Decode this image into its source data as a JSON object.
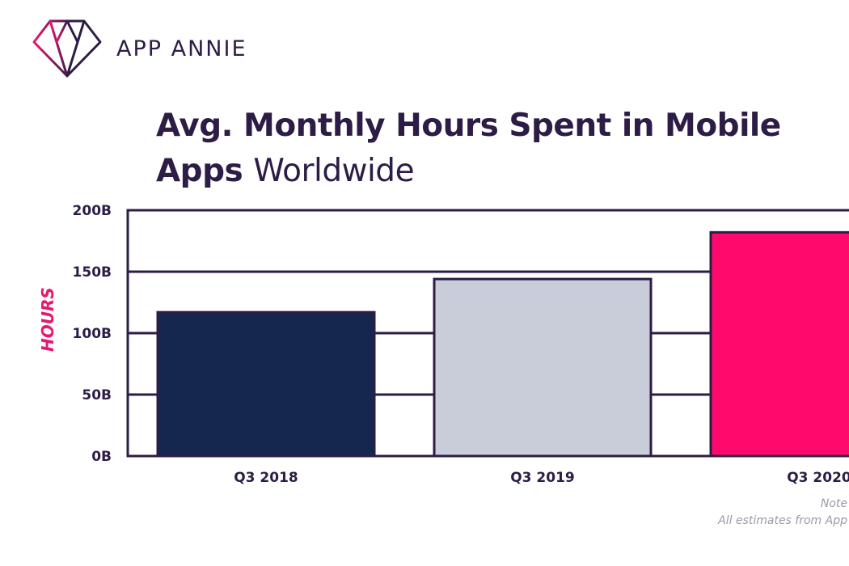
{
  "brand": {
    "name": "APP ANNIE",
    "logo_icon": "diamond-icon",
    "colors": {
      "dark": "#2d1d46",
      "pink": "#e8176f"
    }
  },
  "title": {
    "bold_part": "Avg. Monthly Hours Spent in Mobile Apps",
    "light_part": "Worldwide"
  },
  "footnotes": [
    "Note",
    "All estimates from App"
  ],
  "chart_data": {
    "type": "bar",
    "title": "Avg. Monthly Hours Spent in Mobile Apps Worldwide",
    "xlabel": "",
    "ylabel": "HOURS",
    "categories": [
      "Q3 2018",
      "Q3 2019",
      "Q3 2020"
    ],
    "values": [
      117,
      144,
      182
    ],
    "value_unit": "B",
    "ylim": [
      0,
      200
    ],
    "yticks": [
      0,
      50,
      100,
      150,
      200
    ],
    "ytick_labels": [
      "0B",
      "50B",
      "100B",
      "150B",
      "200B"
    ],
    "bar_colors": [
      "#15264f",
      "#c9ccd9",
      "#ff0a6c"
    ],
    "grid": true,
    "legend": "none"
  }
}
